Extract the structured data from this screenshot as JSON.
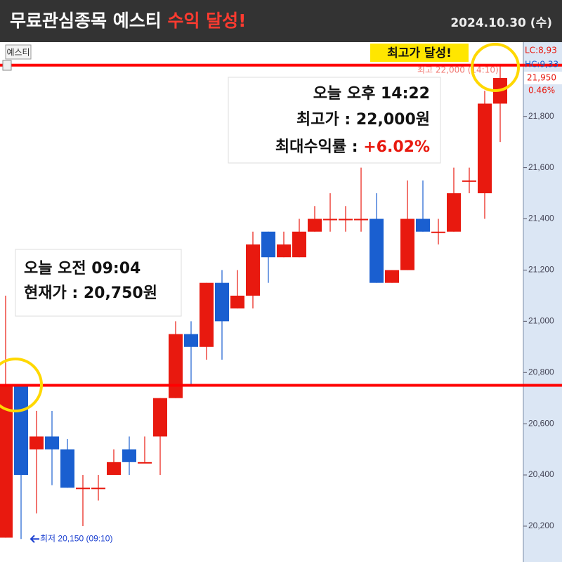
{
  "header": {
    "title": "무료관심종목 예스티",
    "highlight": "수익 달성!",
    "date": "2024.10.30 (수)"
  },
  "chart_data": {
    "type": "candlestick",
    "symbol_button": "예스티",
    "open": [
      20155,
      20750,
      20500,
      20550,
      20500,
      20350,
      20350,
      20400,
      20500,
      20450,
      20550,
      20700,
      20950,
      20900,
      21150,
      21050,
      21100,
      21350,
      21250,
      21250,
      21350,
      21400,
      21400,
      21400,
      21400,
      21150,
      21200,
      21400,
      21350,
      21350,
      21550,
      21500,
      21850
    ],
    "high": [
      21100,
      20750,
      20650,
      20650,
      20540,
      20400,
      20400,
      20500,
      20550,
      20550,
      20700,
      21000,
      21000,
      21150,
      21200,
      21200,
      21350,
      21350,
      21350,
      21400,
      21450,
      21500,
      21450,
      21600,
      21500,
      21200,
      21550,
      21550,
      21400,
      21600,
      21600,
      21900,
      22000
    ],
    "low": [
      20155,
      20150,
      20250,
      20360,
      20350,
      20200,
      20300,
      20400,
      20400,
      20450,
      20400,
      20700,
      20750,
      20850,
      20850,
      21050,
      21050,
      21150,
      21250,
      21250,
      21350,
      21350,
      21350,
      21350,
      21150,
      21150,
      21200,
      21350,
      21300,
      21350,
      21500,
      21400,
      21700
    ],
    "close": [
      20750,
      20400,
      20550,
      20500,
      20350,
      20350,
      20350,
      20450,
      20450,
      20450,
      20700,
      20950,
      20900,
      21150,
      21000,
      21100,
      21300,
      21250,
      21300,
      21350,
      21400,
      21400,
      21400,
      21400,
      21150,
      21200,
      21400,
      21350,
      21350,
      21500,
      21550,
      21850,
      21950
    ],
    "up_color": "#e8190f",
    "down_color": "#1a5fd0",
    "ylim": [
      20060,
      22090
    ],
    "yticks": [
      {
        "value": 20200,
        "label": "20,200"
      },
      {
        "value": 20400,
        "label": "20,400"
      },
      {
        "value": 20600,
        "label": "20,600"
      },
      {
        "value": 20800,
        "label": "20,800"
      },
      {
        "value": 21000,
        "label": "21,000"
      },
      {
        "value": 21200,
        "label": "21,200"
      },
      {
        "value": 21400,
        "label": "21,400"
      },
      {
        "value": 21600,
        "label": "21,600"
      },
      {
        "value": 21800,
        "label": "21,800"
      }
    ],
    "hlines": [
      20750,
      22000
    ],
    "hline_color": "#ff0000",
    "last_price_label": "21,950",
    "last_change_label": "0.46%",
    "lc_label": "LC:8,93",
    "hc_label": "HC:9,33",
    "high_marker": "최고 22,000 (14:10)",
    "low_marker": "최저 20,150 (09:10)",
    "high_badge": "최고가 달성!",
    "box_open": {
      "line1": "오늘 오전 09:04",
      "line2": "현재가 : 20,750원"
    },
    "box_high": {
      "line1": "오늘 오후 14:22",
      "line2": "최고가 : 22,000원",
      "line3": "최대수익률 : ",
      "line3_value": "+6.02%"
    }
  }
}
